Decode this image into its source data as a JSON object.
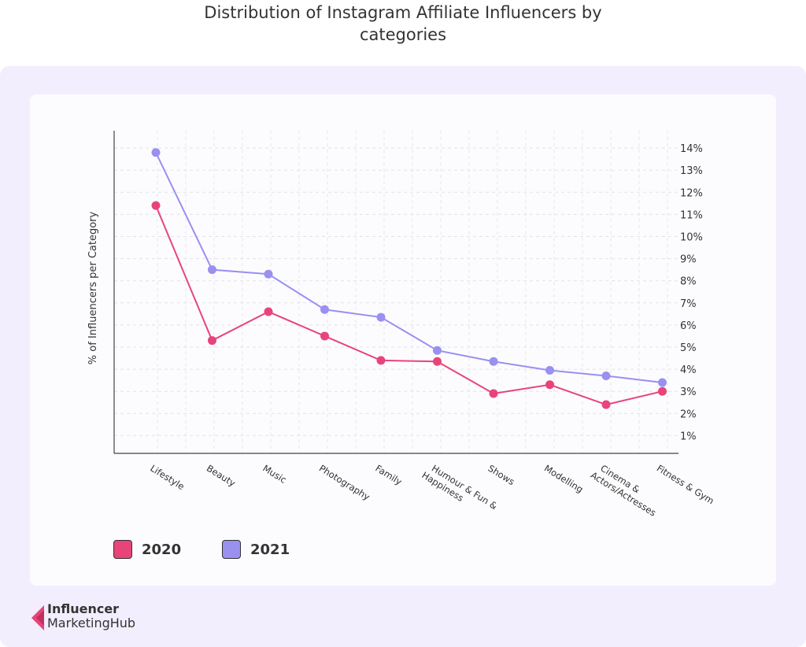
{
  "title_line1": "Distribution of Instagram Affiliate Influencers by",
  "title_line2": "categories",
  "colors": {
    "s2020": "#e8447a",
    "s2021": "#9990f0"
  },
  "logo": {
    "line1": "Influencer",
    "line2": "MarketingHub"
  },
  "chart_data": {
    "type": "line",
    "title": "Distribution of Instagram Affiliate Influencers by categories",
    "ylabel": "% of Influencers per Category",
    "xlabel": "",
    "ylim": [
      0,
      14.8
    ],
    "yticks": [
      "1%",
      "2%",
      "3%",
      "4%",
      "5%",
      "6%",
      "7%",
      "8%",
      "9%",
      "10%",
      "11%",
      "12%",
      "13%",
      "14%"
    ],
    "grid": true,
    "legend": "bottom-left",
    "categories": [
      "Lifestyle",
      "Beauty",
      "Music",
      "Photography",
      "Family",
      "Humour & Fun & Happiness",
      "Shows",
      "Modelling",
      "Cinema & Actors/Actresses",
      "Fitness & Gym"
    ],
    "category_lines": [
      [
        "Lifestyle"
      ],
      [
        "Beauty"
      ],
      [
        "Music"
      ],
      [
        "Photography"
      ],
      [
        "Family"
      ],
      [
        "Humour & Fun &",
        "Happiness"
      ],
      [
        "Shows"
      ],
      [
        "Modelling"
      ],
      [
        "Cinema &",
        "Actors/Actresses"
      ],
      [
        "Fitness & Gym"
      ]
    ],
    "series": [
      {
        "name": "2020",
        "values": [
          11.4,
          5.3,
          6.6,
          5.5,
          4.4,
          4.35,
          2.9,
          3.3,
          2.4,
          3.0
        ]
      },
      {
        "name": "2021",
        "values": [
          13.8,
          8.5,
          8.3,
          6.7,
          6.35,
          4.85,
          4.35,
          3.95,
          3.7,
          3.4
        ]
      }
    ]
  }
}
